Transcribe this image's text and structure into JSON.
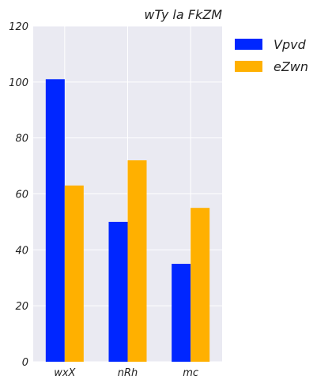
{
  "chart_data": {
    "type": "bar",
    "title": "wTy la FkZM",
    "xlabel": "",
    "ylabel": "",
    "categories": [
      "wxX",
      "nRh",
      "mc"
    ],
    "series": [
      {
        "name": "Vpvd",
        "values": [
          101,
          50,
          35
        ],
        "color": "#0026ff"
      },
      {
        "name": "eZwn",
        "values": [
          63,
          72,
          55
        ],
        "color": "#ffb000"
      }
    ],
    "ylim": [
      0,
      120
    ],
    "yticks": [
      0,
      20,
      40,
      60,
      80,
      100,
      120
    ],
    "grid": true,
    "legend": "outside-right",
    "plot_background": "#eaeaf2",
    "grid_color": "#ffffff"
  }
}
